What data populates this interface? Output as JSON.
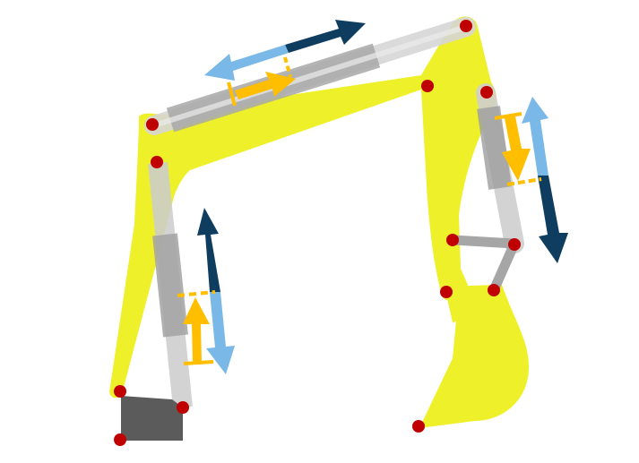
{
  "diagram": {
    "subject": "excavator-arm-hydraulic-mechanism",
    "colors": {
      "background": "#ffffff",
      "linkage": "#eef02a",
      "cylinder_light": "#d6d6d6",
      "cylinder_mid": "#bdbdbd",
      "cylinder_dark": "#9e9e9e",
      "rod_gray": "#a6a6a6",
      "mount_block": "#5b5b5b",
      "joint": "#c00000",
      "arrow_light_blue": "#7ab8e8",
      "arrow_dark_blue": "#0e3d60",
      "arrow_orange": "#ffbf00"
    },
    "icons": [
      "joint-pin-icon",
      "extension-arrow-icon",
      "retraction-arrow-icon",
      "force-arrow-icon"
    ]
  }
}
